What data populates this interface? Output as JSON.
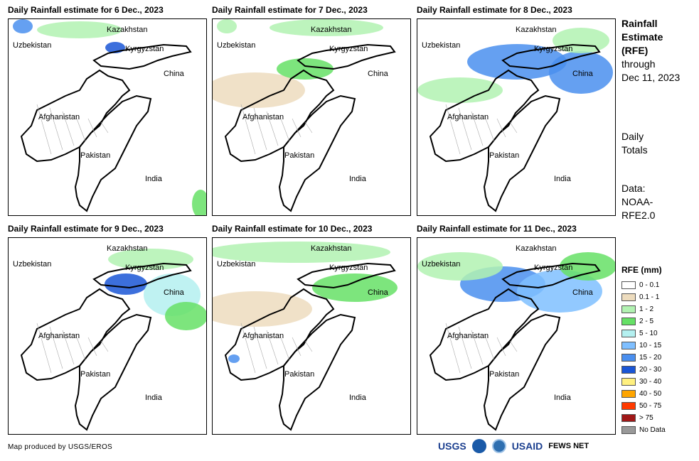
{
  "panels": [
    {
      "title": "Daily Rainfall estimate for 6 Dec., 2023"
    },
    {
      "title": "Daily Rainfall estimate for 7 Dec., 2023"
    },
    {
      "title": "Daily Rainfall estimate for 8 Dec., 2023"
    },
    {
      "title": "Daily Rainfall estimate for 9 Dec., 2023"
    },
    {
      "title": "Daily Rainfall estimate for 10 Dec., 2023"
    },
    {
      "title": "Daily Rainfall estimate for 11 Dec., 2023"
    }
  ],
  "countries": {
    "kazakhstan": "Kazakhstan",
    "uzbekistan": "Uzbekistan",
    "kyrgyzstan": "Kyrgyzstan",
    "china": "China",
    "afghanistan": "Afghanistan",
    "pakistan": "Pakistan",
    "india": "India"
  },
  "side": {
    "heading_1": "Rainfall",
    "heading_2": "Estimate",
    "heading_3": "(RFE)",
    "through": "through",
    "date": "Dec 11, 2023",
    "totals_1": "Daily",
    "totals_2": "Totals",
    "data_1": "Data:",
    "data_2": "NOAA-",
    "data_3": "RFE2.0"
  },
  "legend": {
    "title": "RFE (mm)",
    "items": [
      {
        "label": "0 - 0.1",
        "color": "#ffffff"
      },
      {
        "label": "0.1 - 1",
        "color": "#eddcbe"
      },
      {
        "label": "1 - 2",
        "color": "#b2f2b2"
      },
      {
        "label": "2 - 5",
        "color": "#66e066"
      },
      {
        "label": "5 - 10",
        "color": "#b4f0f0"
      },
      {
        "label": "10 - 15",
        "color": "#7fbfff"
      },
      {
        "label": "15 - 20",
        "color": "#4a8fef"
      },
      {
        "label": "20 - 30",
        "color": "#1a56d6"
      },
      {
        "label": "30 - 40",
        "color": "#fff07f"
      },
      {
        "label": "40 - 50",
        "color": "#ffa500"
      },
      {
        "label": "50 - 75",
        "color": "#ff3a00"
      },
      {
        "label": "> 75",
        "color": "#a01818"
      },
      {
        "label": "No Data",
        "color": "#999999"
      }
    ]
  },
  "credit": "Map produced by USGS/EROS",
  "logos": {
    "usgs": "USGS",
    "usaid": "USAID",
    "fews": "FEWS NET"
  }
}
